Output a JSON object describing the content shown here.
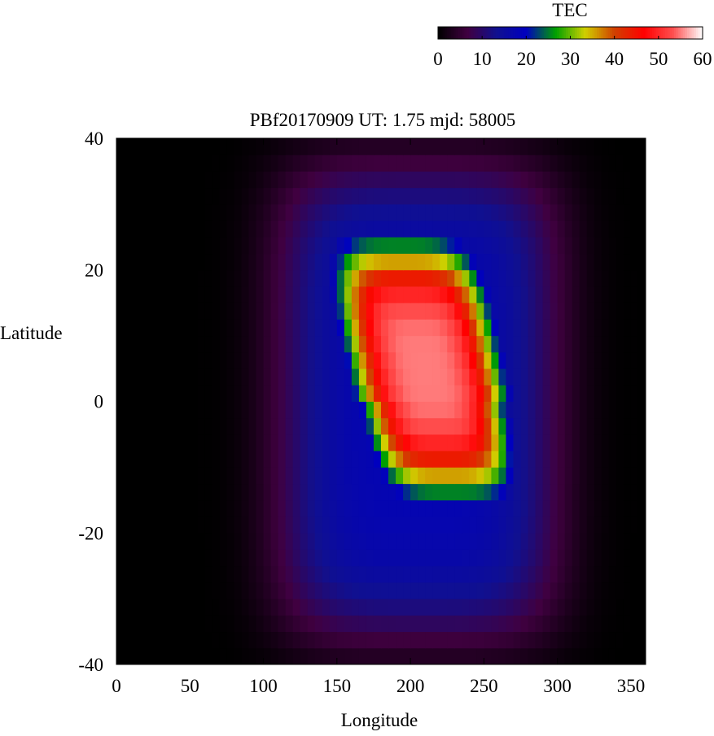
{
  "chart_data": {
    "type": "heatmap",
    "title": "PBf20170909  UT: 1.75  mjd: 58005",
    "xlabel": "Longitude",
    "ylabel": "Latitude",
    "xlim": [
      0,
      360
    ],
    "ylim": [
      -40,
      40
    ],
    "x_ticks": [
      "0",
      "50",
      "100",
      "150",
      "200",
      "250",
      "300",
      "350"
    ],
    "y_ticks": [
      "-40",
      "-20",
      "0",
      "20",
      "40"
    ],
    "colorbar": {
      "label": "TEC",
      "range": [
        0,
        60
      ],
      "ticks": [
        "0",
        "10",
        "20",
        "30",
        "40",
        "50",
        "60"
      ],
      "colormap": [
        "#000000",
        "#400040",
        "#101090",
        "#0000c0",
        "#00a000",
        "#d0d000",
        "#d04000",
        "#ff0000",
        "#ff5050",
        "#ffffff"
      ]
    },
    "field_model": {
      "description_units": "TEC",
      "peak_longitude": 215,
      "peak_latitude": 5,
      "peak_value": 55
    }
  }
}
